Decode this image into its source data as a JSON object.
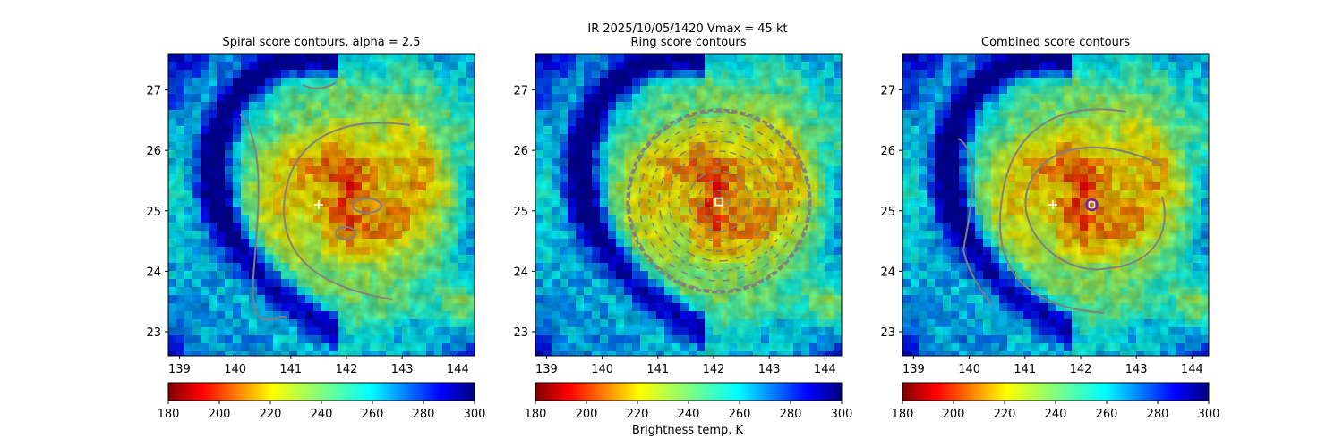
{
  "suptitle_line1": "IR  2025/10/05/1420    Vmax = 45 kt",
  "colorbar_label": "Brightness temp, K",
  "colormap": "jet_reversed",
  "chart_data": [
    {
      "type": "heatmap",
      "title": "Spiral score contours, alpha =  2.5",
      "x_ticks": [
        139,
        140,
        141,
        142,
        143,
        144
      ],
      "y_ticks": [
        23,
        24,
        25,
        26,
        27
      ],
      "xlim": [
        138.8,
        144.3
      ],
      "ylim": [
        22.6,
        27.6
      ],
      "center_marker": {
        "symbol": "plus",
        "lon": 141.5,
        "lat": 25.1,
        "color": "#ffffff"
      },
      "colorbar": {
        "ticks": [
          180,
          200,
          220,
          240,
          260,
          280,
          300
        ],
        "range": [
          180,
          300
        ]
      },
      "contour_color": "#808080"
    },
    {
      "type": "heatmap",
      "title": "Ring score contours",
      "x_ticks": [
        139,
        140,
        141,
        142,
        143,
        144
      ],
      "y_ticks": [
        23,
        24,
        25,
        26,
        27
      ],
      "xlim": [
        138.8,
        144.3
      ],
      "ylim": [
        22.6,
        27.6
      ],
      "center_marker": {
        "symbol": "square",
        "lon": 142.1,
        "lat": 25.15,
        "color": "#ffffff"
      },
      "colorbar": {
        "ticks": [
          180,
          200,
          220,
          240,
          260,
          280,
          300
        ],
        "range": [
          180,
          300
        ]
      },
      "contour_color": "#808080"
    },
    {
      "type": "heatmap",
      "title": "Combined score contours",
      "x_ticks": [
        139,
        140,
        141,
        142,
        143,
        144
      ],
      "y_ticks": [
        23,
        24,
        25,
        26,
        27
      ],
      "xlim": [
        138.8,
        144.3
      ],
      "ylim": [
        22.6,
        27.6
      ],
      "center_marker": {
        "symbol": "plus",
        "lon": 141.5,
        "lat": 25.1,
        "color": "#ffffff"
      },
      "secondary_marker": {
        "symbol": "circle",
        "lon": 142.2,
        "lat": 25.1,
        "color": "#7b1fa2"
      },
      "colorbar": {
        "ticks": [
          180,
          200,
          220,
          240,
          260,
          280,
          300
        ],
        "range": [
          180,
          300
        ]
      },
      "contour_color": "#808080"
    }
  ]
}
